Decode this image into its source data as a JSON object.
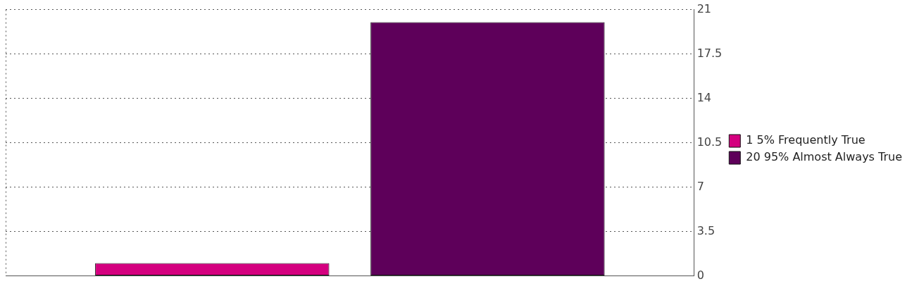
{
  "chart_data": {
    "type": "bar",
    "categories": [
      null
    ],
    "series": [
      {
        "name": "1 5% Frequently True",
        "color": "#d4007f",
        "values": [
          1
        ]
      },
      {
        "name": "20 95% Almost Always True",
        "color": "#5e005a",
        "values": [
          20
        ]
      }
    ],
    "ylim": [
      0,
      21
    ],
    "yticks": [
      0,
      3.5,
      7,
      10.5,
      14,
      17.5,
      21
    ],
    "grid": "y",
    "legend": "right"
  }
}
